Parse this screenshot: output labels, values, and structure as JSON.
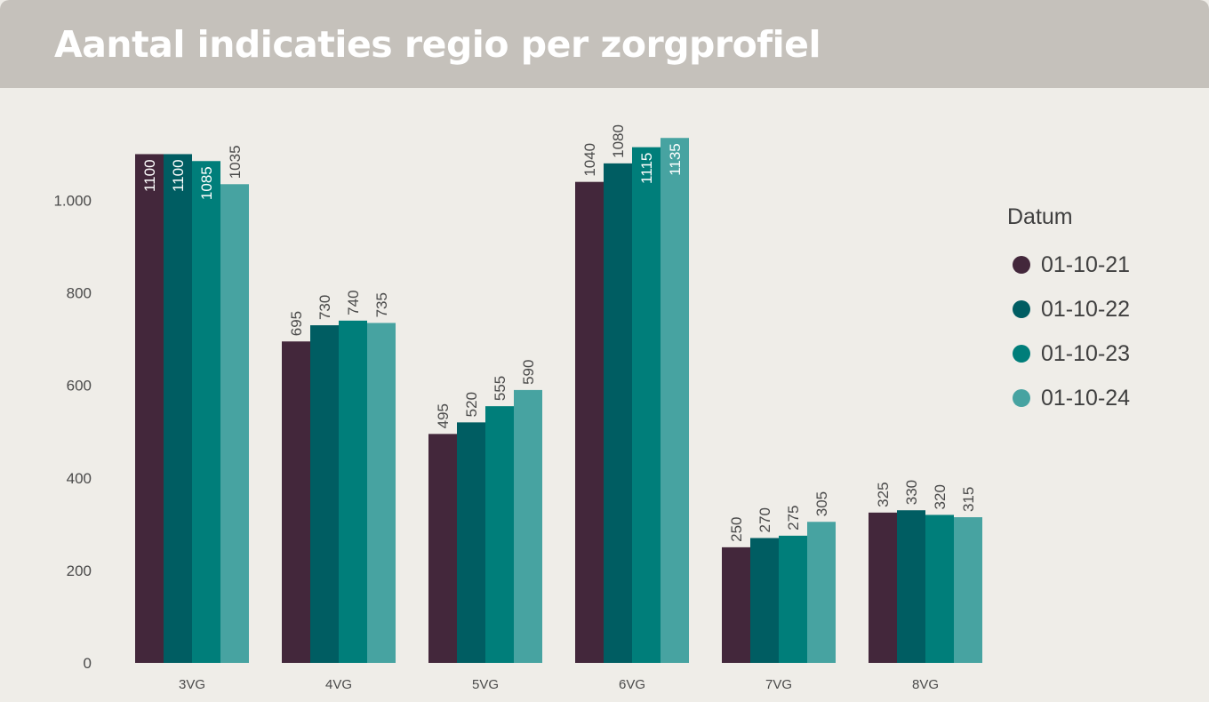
{
  "header": {
    "title": "Aantal indicaties regio per zorgprofiel"
  },
  "chart_data": {
    "type": "bar",
    "categories": [
      "3VG",
      "4VG",
      "5VG",
      "6VG",
      "7VG",
      "8VG"
    ],
    "series": [
      {
        "name": "01-10-21",
        "color": "#43273b",
        "values": [
          1100,
          695,
          495,
          1040,
          250,
          325
        ]
      },
      {
        "name": "01-10-22",
        "color": "#005d62",
        "values": [
          1100,
          730,
          520,
          1080,
          270,
          330
        ]
      },
      {
        "name": "01-10-23",
        "color": "#007e7a",
        "values": [
          1085,
          740,
          555,
          1115,
          275,
          320
        ]
      },
      {
        "name": "01-10-24",
        "color": "#47a3a1",
        "values": [
          1035,
          735,
          590,
          1135,
          305,
          315
        ]
      }
    ],
    "y_ticks": [
      {
        "value": 0,
        "label": "0"
      },
      {
        "value": 200,
        "label": "200"
      },
      {
        "value": 400,
        "label": "400"
      },
      {
        "value": 600,
        "label": "600"
      },
      {
        "value": 800,
        "label": "800"
      },
      {
        "value": 1000,
        "label": "1.000"
      }
    ],
    "ylim": [
      0,
      1150
    ],
    "legend": {
      "title": "Datum",
      "position": "right"
    },
    "data_labels": "vertical",
    "grid": false
  }
}
